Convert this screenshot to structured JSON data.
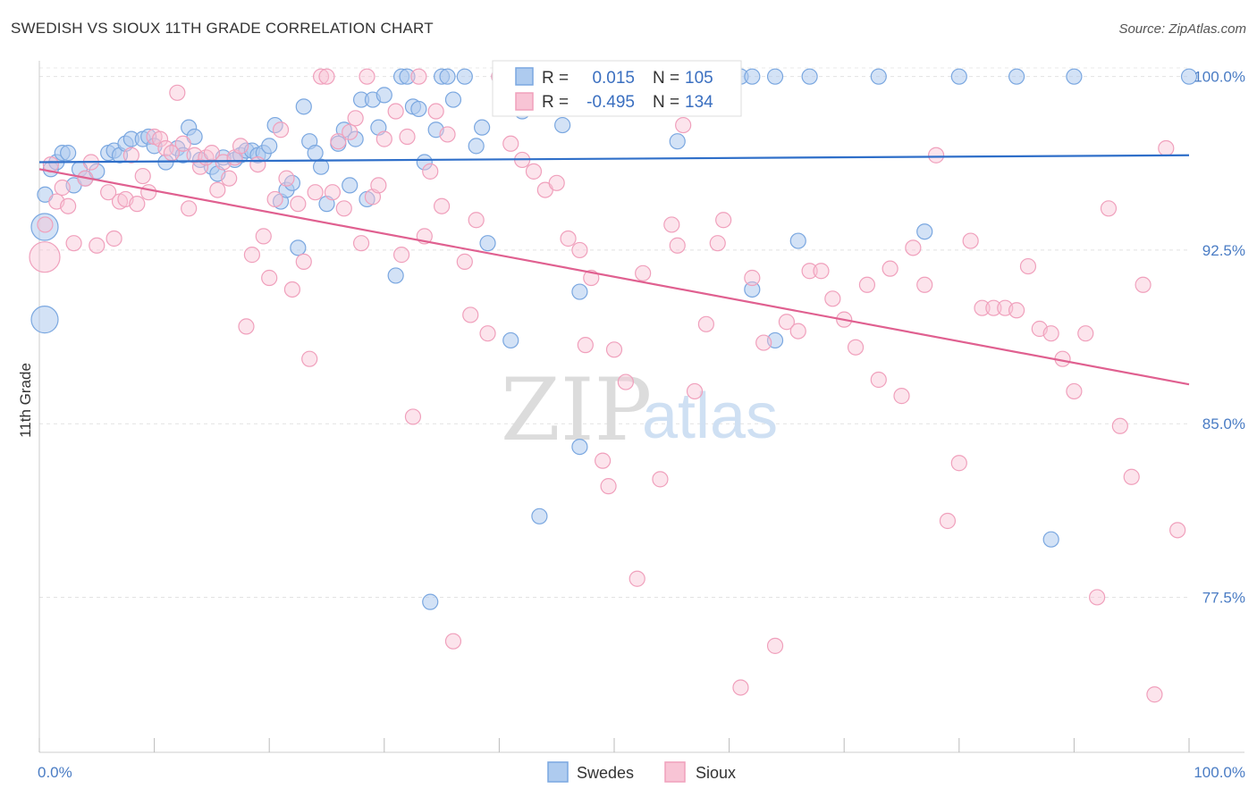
{
  "header": {
    "title": "SWEDISH VS SIOUX 11TH GRADE CORRELATION CHART",
    "source": "Source: ZipAtlas.com"
  },
  "watermark": {
    "zip": "ZIP",
    "atlas": "atlas"
  },
  "legend": {
    "rows": [
      {
        "r_label": "R =",
        "r_value": "0.015",
        "n_label": "N =",
        "n_value": "105"
      },
      {
        "r_label": "R =",
        "r_value": "-0.495",
        "n_label": "N =",
        "n_value": "134"
      }
    ]
  },
  "chart_data": {
    "type": "scatter",
    "title": "SWEDISH VS SIOUX 11TH GRADE CORRELATION CHART",
    "xlabel": "",
    "ylabel": "11th Grade",
    "xlim": [
      0,
      100
    ],
    "ylim": [
      70.8,
      101.3
    ],
    "y_ticks": [
      {
        "value": 100.0,
        "label": "100.0%"
      },
      {
        "value": 92.5,
        "label": "92.5%"
      },
      {
        "value": 85.0,
        "label": "85.0%"
      },
      {
        "value": 77.5,
        "label": "77.5%"
      }
    ],
    "x_ticks": [
      {
        "value": 0,
        "label": "0.0%"
      },
      {
        "value": 100,
        "label": "100.0%"
      }
    ],
    "x_minor_ticks": [
      0,
      10,
      20,
      30,
      40,
      50,
      60,
      70,
      80,
      90,
      100
    ],
    "grid": true,
    "legend_position": "top-center",
    "series": [
      {
        "name": "Swedes",
        "color": "#7aa7e0",
        "trend_color": "#2f6fc9",
        "trend": {
          "x": [
            0,
            100
          ],
          "y": [
            96.3,
            96.6
          ]
        },
        "points": [
          [
            0.5,
            94.9
          ],
          [
            1,
            96.0
          ],
          [
            1.5,
            96.3
          ],
          [
            2,
            96.7
          ],
          [
            2.5,
            96.7
          ],
          [
            3,
            95.3
          ],
          [
            3.5,
            96.0
          ],
          [
            4,
            95.6
          ],
          [
            5,
            95.9
          ],
          [
            6,
            96.7
          ],
          [
            6.5,
            96.8
          ],
          [
            7,
            96.6
          ],
          [
            7.5,
            97.1
          ],
          [
            8,
            97.3
          ],
          [
            9,
            97.3
          ],
          [
            9.5,
            97.4
          ],
          [
            10,
            97.0
          ],
          [
            11,
            96.3
          ],
          [
            12,
            96.9
          ],
          [
            12.5,
            96.6
          ],
          [
            13,
            97.8
          ],
          [
            13.5,
            97.4
          ],
          [
            14,
            96.4
          ],
          [
            15,
            96.1
          ],
          [
            15.5,
            95.8
          ],
          [
            16,
            96.5
          ],
          [
            17,
            96.4
          ],
          [
            17.5,
            96.6
          ],
          [
            18,
            96.8
          ],
          [
            18.5,
            96.8
          ],
          [
            19,
            96.6
          ],
          [
            19.5,
            96.7
          ],
          [
            20,
            97.0
          ],
          [
            20.5,
            97.9
          ],
          [
            21,
            94.6
          ],
          [
            21.5,
            95.1
          ],
          [
            22,
            95.4
          ],
          [
            22.5,
            92.6
          ],
          [
            23,
            98.7
          ],
          [
            23.5,
            97.2
          ],
          [
            24,
            96.7
          ],
          [
            24.5,
            96.1
          ],
          [
            25,
            94.5
          ],
          [
            26,
            97.1
          ],
          [
            26.5,
            97.7
          ],
          [
            27,
            95.3
          ],
          [
            27.5,
            97.3
          ],
          [
            28,
            99.0
          ],
          [
            28.5,
            94.7
          ],
          [
            29,
            99.0
          ],
          [
            29.5,
            97.8
          ],
          [
            30,
            99.2
          ],
          [
            31,
            91.4
          ],
          [
            31.5,
            100.0
          ],
          [
            32,
            100.0
          ],
          [
            32.5,
            98.7
          ],
          [
            33,
            98.6
          ],
          [
            33.5,
            96.3
          ],
          [
            34,
            77.3
          ],
          [
            34.5,
            97.7
          ],
          [
            35,
            100.0
          ],
          [
            35.5,
            100.0
          ],
          [
            36,
            99.0
          ],
          [
            37,
            100.0
          ],
          [
            38,
            97.0
          ],
          [
            38.5,
            97.8
          ],
          [
            39,
            92.8
          ],
          [
            40,
            100.0
          ],
          [
            41,
            88.6
          ],
          [
            42,
            98.5
          ],
          [
            42.5,
            100.0
          ],
          [
            43,
            100.0
          ],
          [
            43.5,
            81.0
          ],
          [
            44,
            100.0
          ],
          [
            45,
            100.0
          ],
          [
            45.5,
            97.9
          ],
          [
            46,
            100.0
          ],
          [
            46.5,
            100.0
          ],
          [
            47,
            90.7
          ],
          [
            48,
            100.0
          ],
          [
            49,
            100.0
          ],
          [
            50,
            100.0
          ],
          [
            51,
            100.0
          ],
          [
            52,
            100.0
          ],
          [
            53,
            100.0
          ],
          [
            55,
            100.0
          ],
          [
            55.5,
            97.2
          ],
          [
            56,
            100.0
          ],
          [
            57,
            100.0
          ],
          [
            58,
            100.0
          ],
          [
            60,
            100.0
          ],
          [
            61,
            100.0
          ],
          [
            62,
            100.0
          ],
          [
            64,
            100.0
          ],
          [
            67,
            100.0
          ],
          [
            73,
            100.0
          ],
          [
            80,
            100.0
          ],
          [
            85,
            100.0
          ],
          [
            90,
            100.0
          ],
          [
            100,
            100.0
          ],
          [
            47,
            84.0
          ],
          [
            62,
            90.8
          ],
          [
            64,
            88.6
          ],
          [
            66,
            92.9
          ],
          [
            77,
            93.3
          ],
          [
            88,
            80.0
          ]
        ],
        "large_points": [
          [
            0.3,
            89.5
          ],
          [
            0.4,
            93.5
          ]
        ]
      },
      {
        "name": "Sioux",
        "color": "#f0a0bc",
        "trend_color": "#e06090",
        "trend": {
          "x": [
            0,
            100
          ],
          "y": [
            96.0,
            86.7
          ]
        },
        "points": [
          [
            0.5,
            93.6
          ],
          [
            1,
            96.2
          ],
          [
            1.5,
            94.6
          ],
          [
            2,
            95.2
          ],
          [
            2.5,
            94.4
          ],
          [
            3,
            92.8
          ],
          [
            4,
            95.6
          ],
          [
            4.5,
            96.3
          ],
          [
            5,
            92.7
          ],
          [
            6,
            95.0
          ],
          [
            6.5,
            93.0
          ],
          [
            7,
            94.6
          ],
          [
            7.5,
            94.7
          ],
          [
            8,
            96.6
          ],
          [
            8.5,
            94.5
          ],
          [
            9,
            95.7
          ],
          [
            9.5,
            95.0
          ],
          [
            10,
            97.4
          ],
          [
            10.5,
            97.3
          ],
          [
            11,
            96.9
          ],
          [
            11.5,
            96.7
          ],
          [
            12,
            99.3
          ],
          [
            12.5,
            97.1
          ],
          [
            13,
            94.3
          ],
          [
            13.5,
            96.6
          ],
          [
            14,
            96.1
          ],
          [
            14.5,
            96.5
          ],
          [
            15,
            96.7
          ],
          [
            15.5,
            95.1
          ],
          [
            16,
            96.3
          ],
          [
            16.5,
            95.6
          ],
          [
            17,
            96.5
          ],
          [
            17.5,
            97.0
          ],
          [
            18,
            89.2
          ],
          [
            18.5,
            92.3
          ],
          [
            19,
            96.2
          ],
          [
            19.5,
            93.1
          ],
          [
            20,
            91.3
          ],
          [
            20.5,
            94.7
          ],
          [
            21,
            97.7
          ],
          [
            21.5,
            95.6
          ],
          [
            22,
            90.8
          ],
          [
            22.5,
            94.5
          ],
          [
            23,
            92.0
          ],
          [
            23.5,
            87.8
          ],
          [
            24,
            95.0
          ],
          [
            24.5,
            100.0
          ],
          [
            25,
            100.0
          ],
          [
            25.5,
            95.0
          ],
          [
            26,
            97.2
          ],
          [
            26.5,
            94.3
          ],
          [
            27,
            97.6
          ],
          [
            27.5,
            98.2
          ],
          [
            28,
            92.8
          ],
          [
            28.5,
            100.0
          ],
          [
            29,
            94.8
          ],
          [
            29.5,
            95.3
          ],
          [
            30,
            97.3
          ],
          [
            31,
            98.5
          ],
          [
            31.5,
            92.3
          ],
          [
            32,
            97.4
          ],
          [
            32.5,
            85.3
          ],
          [
            33,
            100.0
          ],
          [
            33.5,
            93.1
          ],
          [
            34,
            95.9
          ],
          [
            34.5,
            98.5
          ],
          [
            35,
            94.4
          ],
          [
            35.5,
            97.5
          ],
          [
            36,
            75.6
          ],
          [
            37,
            92.0
          ],
          [
            37.5,
            89.7
          ],
          [
            38,
            93.8
          ],
          [
            39,
            88.9
          ],
          [
            40,
            100.0
          ],
          [
            41,
            97.1
          ],
          [
            42,
            96.4
          ],
          [
            43,
            95.9
          ],
          [
            44,
            95.1
          ],
          [
            45,
            95.4
          ],
          [
            46,
            93.0
          ],
          [
            47,
            92.5
          ],
          [
            47.5,
            88.4
          ],
          [
            48,
            91.3
          ],
          [
            49,
            83.4
          ],
          [
            49.5,
            82.3
          ],
          [
            50,
            88.2
          ],
          [
            51,
            86.8
          ],
          [
            52,
            78.3
          ],
          [
            52.5,
            91.5
          ],
          [
            53,
            100.0
          ],
          [
            54,
            82.6
          ],
          [
            55,
            93.6
          ],
          [
            55.5,
            92.7
          ],
          [
            56,
            97.9
          ],
          [
            57,
            86.4
          ],
          [
            58,
            89.3
          ],
          [
            59,
            92.8
          ],
          [
            59.5,
            93.8
          ],
          [
            61,
            73.6
          ],
          [
            62,
            91.3
          ],
          [
            63,
            88.5
          ],
          [
            64,
            75.4
          ],
          [
            65,
            89.4
          ],
          [
            66,
            89.0
          ],
          [
            67,
            91.6
          ],
          [
            68,
            91.6
          ],
          [
            69,
            90.4
          ],
          [
            70,
            89.5
          ],
          [
            71,
            88.3
          ],
          [
            72,
            91.0
          ],
          [
            73,
            86.9
          ],
          [
            74,
            91.7
          ],
          [
            75,
            86.2
          ],
          [
            76,
            92.6
          ],
          [
            77,
            91.0
          ],
          [
            78,
            96.6
          ],
          [
            79,
            80.8
          ],
          [
            80,
            83.3
          ],
          [
            81,
            92.9
          ],
          [
            82,
            90.0
          ],
          [
            83,
            90.0
          ],
          [
            84,
            90.0
          ],
          [
            85,
            89.9
          ],
          [
            86,
            91.8
          ],
          [
            87,
            89.1
          ],
          [
            88,
            88.9
          ],
          [
            89,
            87.8
          ],
          [
            90,
            86.4
          ],
          [
            91,
            88.9
          ],
          [
            92,
            77.5
          ],
          [
            93,
            94.3
          ],
          [
            94,
            84.9
          ],
          [
            95,
            82.7
          ],
          [
            96,
            91.0
          ],
          [
            97,
            73.3
          ],
          [
            98,
            96.9
          ],
          [
            99,
            80.4
          ]
        ],
        "large_points": [
          [
            0.1,
            92.2
          ]
        ]
      }
    ]
  },
  "bottom_legend": [
    {
      "label": "Swedes",
      "color": "#aecbef",
      "border": "#7aa7e0"
    },
    {
      "label": "Sioux",
      "color": "#f8c4d5",
      "border": "#f0a0bc"
    }
  ]
}
